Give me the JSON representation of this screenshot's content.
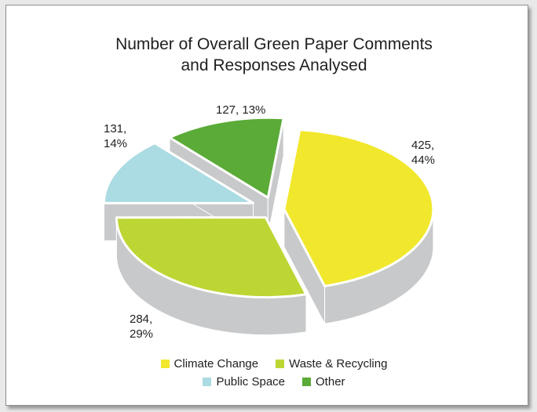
{
  "chart_data": {
    "type": "pie",
    "title_lines": [
      "Number of Overall Green Paper Comments",
      "and Responses Analysed"
    ],
    "slices": [
      {
        "name": "Climate Change",
        "value": 425,
        "percent": "44%",
        "label_lines": [
          "425,",
          "44%"
        ],
        "color": "#f1e82e"
      },
      {
        "name": "Waste & Recycling",
        "value": 284,
        "percent": "29%",
        "label_lines": [
          "284,",
          "29%"
        ],
        "color": "#bdd634"
      },
      {
        "name": "Public Space",
        "value": 131,
        "percent": "14%",
        "label_lines": [
          "131,",
          "14%"
        ],
        "color": "#abdbe3"
      },
      {
        "name": "Other",
        "value": 127,
        "percent": "13%",
        "label_lines": [
          "127, 13%"
        ],
        "color": "#5aab37"
      }
    ],
    "legend": {
      "placement": "bottom"
    },
    "side_color": "#c8c9cb"
  }
}
